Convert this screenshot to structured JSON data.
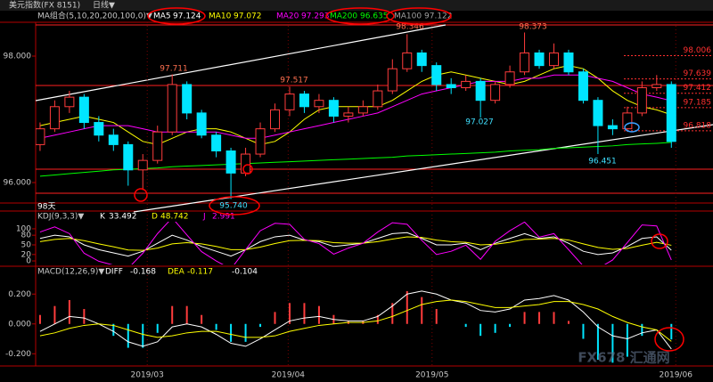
{
  "chart_data": {
    "type": "candlestick",
    "header": {
      "symbol": "美元指数(FX 8151)",
      "period": "日线▼"
    },
    "indicator_label": "MA组合(5,10,20,200,100,0)▼",
    "up_color": "#ff3c3c",
    "down_color": "#00e5ff",
    "candles": [
      [
        96.6,
        96.95,
        96.5,
        96.85
      ],
      [
        96.85,
        97.3,
        96.8,
        97.2
      ],
      [
        97.2,
        97.45,
        97.1,
        97.35
      ],
      [
        97.35,
        97.4,
        96.85,
        96.95
      ],
      [
        96.95,
        97.05,
        96.65,
        96.75
      ],
      [
        96.75,
        96.85,
        96.5,
        96.6
      ],
      [
        96.6,
        96.65,
        95.95,
        96.2
      ],
      [
        96.2,
        96.45,
        95.88,
        96.35
      ],
      [
        96.35,
        96.9,
        96.3,
        96.8
      ],
      [
        96.8,
        97.711,
        96.75,
        97.55
      ],
      [
        97.55,
        97.6,
        97.0,
        97.1
      ],
      [
        97.1,
        97.15,
        96.7,
        96.75
      ],
      [
        96.75,
        96.8,
        96.4,
        96.5
      ],
      [
        96.5,
        96.55,
        95.74,
        96.15
      ],
      [
        96.15,
        96.55,
        96.1,
        96.45
      ],
      [
        96.45,
        96.95,
        96.4,
        96.85
      ],
      [
        96.85,
        97.25,
        96.8,
        97.15
      ],
      [
        97.15,
        97.517,
        97.05,
        97.4
      ],
      [
        97.4,
        97.45,
        97.1,
        97.2
      ],
      [
        97.2,
        97.4,
        97.1,
        97.3
      ],
      [
        97.3,
        97.35,
        96.95,
        97.05
      ],
      [
        97.05,
        97.2,
        96.95,
        97.1
      ],
      [
        97.1,
        97.3,
        97.05,
        97.2
      ],
      [
        97.2,
        97.55,
        97.15,
        97.45
      ],
      [
        97.45,
        97.95,
        97.4,
        97.8
      ],
      [
        97.8,
        98.346,
        97.75,
        98.05
      ],
      [
        98.05,
        98.1,
        97.75,
        97.85
      ],
      [
        97.85,
        97.9,
        97.45,
        97.55
      ],
      [
        97.55,
        97.65,
        97.4,
        97.5
      ],
      [
        97.5,
        97.7,
        97.45,
        97.6
      ],
      [
        97.6,
        97.65,
        97.027,
        97.3
      ],
      [
        97.3,
        97.6,
        97.25,
        97.55
      ],
      [
        97.55,
        97.85,
        97.5,
        97.75
      ],
      [
        97.75,
        98.373,
        97.7,
        98.05
      ],
      [
        98.05,
        98.1,
        97.8,
        97.85
      ],
      [
        97.85,
        98.2,
        97.8,
        98.05
      ],
      [
        98.05,
        98.1,
        97.7,
        97.75
      ],
      [
        97.75,
        97.8,
        97.25,
        97.3
      ],
      [
        97.3,
        97.35,
        96.451,
        96.9
      ],
      [
        96.9,
        97.0,
        96.75,
        96.85
      ],
      [
        96.85,
        97.2,
        96.8,
        97.1
      ],
      [
        97.1,
        97.6,
        97.05,
        97.5
      ],
      [
        97.5,
        97.7,
        97.45,
        97.55
      ],
      [
        97.55,
        97.6,
        96.55,
        96.65
      ]
    ],
    "xlim": [
      -0.3,
      44.5
    ],
    "xticks": [
      {
        "value": 7.3,
        "label": "2019/03"
      },
      {
        "value": 16.9,
        "label": "2019/04"
      },
      {
        "value": 26.7,
        "label": "2019/05"
      },
      {
        "value": 43.3,
        "label": "2019/06"
      }
    ],
    "ylim": [
      95.676,
      98.535
    ],
    "yticks": [
      {
        "value": 98,
        "label": "98.000"
      },
      {
        "value": 96,
        "label": "96.000"
      }
    ],
    "series": [
      {
        "name": "MA10",
        "color": "#ffff00",
        "values": [
          96.9,
          96.95,
          97.0,
          97.05,
          97.0,
          96.95,
          96.8,
          96.65,
          96.6,
          96.7,
          96.8,
          96.85,
          96.85,
          96.8,
          96.7,
          96.6,
          96.65,
          96.8,
          97.0,
          97.15,
          97.2,
          97.2,
          97.2,
          97.2,
          97.3,
          97.45,
          97.6,
          97.7,
          97.75,
          97.7,
          97.65,
          97.6,
          97.55,
          97.6,
          97.7,
          97.8,
          97.85,
          97.8,
          97.65,
          97.45,
          97.3,
          97.2,
          97.15,
          97.072
        ]
      },
      {
        "name": "MA20",
        "color": "#ff00ff",
        "values": [
          96.7,
          96.75,
          96.8,
          96.85,
          96.9,
          96.9,
          96.9,
          96.85,
          96.8,
          96.8,
          96.8,
          96.8,
          96.8,
          96.75,
          96.7,
          96.7,
          96.75,
          96.8,
          96.85,
          96.9,
          96.95,
          97.0,
          97.05,
          97.1,
          97.2,
          97.3,
          97.4,
          97.45,
          97.5,
          97.55,
          97.6,
          97.6,
          97.6,
          97.65,
          97.65,
          97.7,
          97.7,
          97.7,
          97.65,
          97.6,
          97.5,
          97.4,
          97.35,
          97.293
        ]
      },
      {
        "name": "MA200",
        "color": "#00ff00",
        "values": [
          96.1,
          96.12,
          96.14,
          96.16,
          96.18,
          96.2,
          96.21,
          96.22,
          96.23,
          96.25,
          96.26,
          96.27,
          96.28,
          96.29,
          96.3,
          96.31,
          96.32,
          96.33,
          96.34,
          96.35,
          96.36,
          96.37,
          96.38,
          96.39,
          96.4,
          96.42,
          96.43,
          96.44,
          96.45,
          96.46,
          96.47,
          96.48,
          96.5,
          96.51,
          96.52,
          96.54,
          96.55,
          96.56,
          96.57,
          96.58,
          96.6,
          96.61,
          96.62,
          96.635
        ]
      }
    ],
    "extra_ma": [
      {
        "name": "MA5",
        "value": 97.124,
        "color": "#ffffff"
      },
      {
        "name": "MA100",
        "value": 97.122,
        "color": "#a0a0a0"
      }
    ],
    "levels": [
      98.006,
      97.639,
      97.412,
      97.185,
      96.818
    ],
    "level_color": "#ff3030",
    "annotations": [
      {
        "text": "97.711"
      },
      {
        "text": "97.517"
      },
      {
        "text": "98.346"
      },
      {
        "text": "98.373"
      },
      {
        "text": "97.027"
      },
      {
        "text": "96.451"
      },
      {
        "text": "95.740"
      }
    ],
    "period_note": "98天",
    "kdj": {
      "title": "KDJ(9,3,3)▼",
      "ylim": [
        -11,
        122
      ],
      "yticks": [
        0,
        20,
        50,
        80,
        100
      ],
      "series": [
        {
          "name": "K",
          "color": "#ffffff",
          "values": [
            70,
            80,
            75,
            50,
            35,
            25,
            15,
            30,
            55,
            80,
            65,
            45,
            30,
            15,
            35,
            60,
            75,
            80,
            65,
            60,
            45,
            50,
            55,
            70,
            85,
            88,
            70,
            50,
            50,
            55,
            35,
            55,
            70,
            85,
            70,
            75,
            55,
            30,
            20,
            25,
            45,
            70,
            75,
            33.492
          ]
        },
        {
          "name": "D",
          "color": "#ffff00",
          "values": [
            60,
            67,
            70,
            63,
            53,
            44,
            34,
            33,
            40,
            53,
            57,
            53,
            45,
            35,
            35,
            43,
            54,
            63,
            64,
            63,
            57,
            55,
            55,
            60,
            68,
            75,
            73,
            65,
            60,
            58,
            50,
            52,
            58,
            67,
            68,
            70,
            65,
            53,
            42,
            36,
            39,
            49,
            58,
            48.742
          ]
        },
        {
          "name": "J",
          "color": "#ff00ff",
          "values": [
            90,
            106,
            85,
            24,
            -1,
            -13,
            -23,
            24,
            85,
            134,
            81,
            29,
            0,
            -25,
            35,
            94,
            117,
            114,
            67,
            54,
            21,
            40,
            55,
            90,
            119,
            114,
            64,
            20,
            30,
            49,
            5,
            61,
            94,
            121,
            74,
            85,
            35,
            -16,
            -24,
            3,
            57,
            112,
            109,
            2.991
          ]
        }
      ]
    },
    "macd": {
      "title": "MACD(12,26,9)▼",
      "ylim": [
        -0.276,
        0.321
      ],
      "yticks": [
        {
          "value": 0.2,
          "label": "0.200"
        },
        {
          "value": 0,
          "label": "0.000"
        },
        {
          "value": -0.2,
          "label": "-0.200"
        }
      ],
      "histogram": {
        "pos_color": "#ff3c3c",
        "neg_color": "#00e5ff",
        "values": [
          0.06,
          0.12,
          0.16,
          0.1,
          0.0,
          -0.08,
          -0.16,
          -0.16,
          -0.06,
          0.12,
          0.12,
          0.06,
          -0.04,
          -0.12,
          -0.12,
          -0.02,
          0.08,
          0.14,
          0.14,
          0.12,
          0.06,
          0.02,
          0.02,
          0.06,
          0.14,
          0.22,
          0.18,
          0.1,
          0.0,
          -0.02,
          -0.08,
          -0.06,
          -0.02,
          0.08,
          0.08,
          0.08,
          0.02,
          -0.1,
          -0.24,
          -0.26,
          -0.22,
          -0.08,
          0.0,
          -0.104
        ]
      },
      "series": [
        {
          "name": "DIFF",
          "color": "#ffffff",
          "values": [
            -0.05,
            0.0,
            0.05,
            0.04,
            0.0,
            -0.05,
            -0.12,
            -0.15,
            -0.12,
            -0.02,
            0.0,
            -0.02,
            -0.07,
            -0.13,
            -0.15,
            -0.1,
            -0.04,
            0.02,
            0.04,
            0.05,
            0.03,
            0.02,
            0.02,
            0.05,
            0.12,
            0.2,
            0.22,
            0.2,
            0.16,
            0.14,
            0.09,
            0.08,
            0.1,
            0.16,
            0.17,
            0.19,
            0.16,
            0.08,
            -0.02,
            -0.08,
            -0.1,
            -0.06,
            -0.04,
            -0.168
          ]
        },
        {
          "name": "DEA",
          "color": "#ffff00",
          "values": [
            -0.08,
            -0.06,
            -0.03,
            -0.01,
            0.0,
            -0.01,
            -0.04,
            -0.07,
            -0.09,
            -0.08,
            -0.06,
            -0.05,
            -0.05,
            -0.07,
            -0.09,
            -0.09,
            -0.08,
            -0.05,
            -0.03,
            -0.01,
            0.0,
            0.01,
            0.01,
            0.02,
            0.05,
            0.09,
            0.13,
            0.15,
            0.16,
            0.15,
            0.13,
            0.11,
            0.11,
            0.12,
            0.13,
            0.15,
            0.15,
            0.13,
            0.1,
            0.05,
            0.01,
            -0.02,
            -0.04,
            -0.117
          ]
        }
      ]
    },
    "watermark": "FX678 汇通网"
  }
}
